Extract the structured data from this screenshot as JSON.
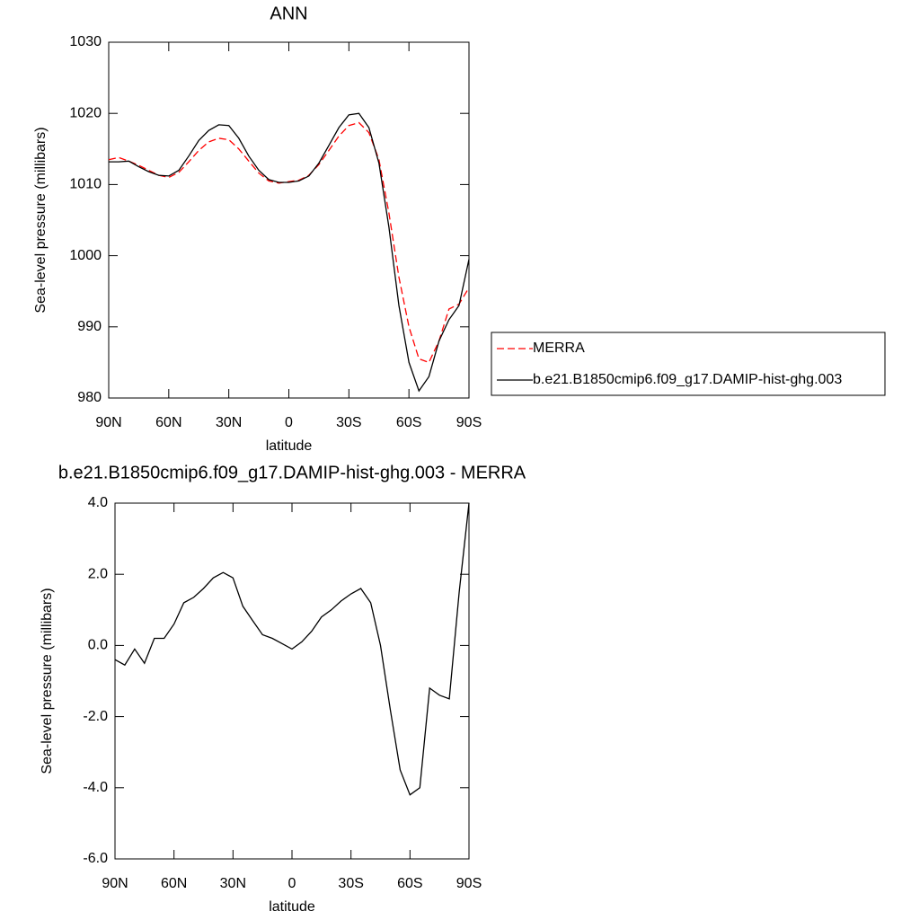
{
  "chart_data": [
    {
      "type": "line",
      "title": "ANN",
      "xlabel": "latitude",
      "ylabel": "Sea-level pressure (millibars)",
      "x": [
        90,
        85,
        80,
        75,
        70,
        65,
        60,
        55,
        50,
        45,
        40,
        35,
        30,
        25,
        20,
        15,
        10,
        5,
        0,
        -5,
        -10,
        -15,
        -20,
        -25,
        -30,
        -35,
        -40,
        -45,
        -50,
        -55,
        -60,
        -65,
        -70,
        -75,
        -80,
        -85,
        -90
      ],
      "xlim": [
        90,
        -90
      ],
      "xticks": [
        {
          "value": 90,
          "label": "90N"
        },
        {
          "value": 60,
          "label": "60N"
        },
        {
          "value": 30,
          "label": "30N"
        },
        0,
        {
          "value": -30,
          "label": "30S"
        },
        {
          "value": -60,
          "label": "60S"
        },
        {
          "value": -90,
          "label": "90S"
        }
      ],
      "ylim": [
        980,
        1030
      ],
      "yticks": [
        980,
        990,
        1000,
        1010,
        1020,
        1030
      ],
      "series": [
        {
          "name": "MERRA",
          "color": "#ff0000",
          "dash": true,
          "values": [
            1013.5,
            1013.8,
            1013.3,
            1012.7,
            1012,
            1011.3,
            1011,
            1011.7,
            1013.2,
            1014.8,
            1016,
            1016.5,
            1016.3,
            1015,
            1013.3,
            1011.6,
            1010.5,
            1010.2,
            1010.4,
            1010.6,
            1011.3,
            1012.8,
            1014.8,
            1016.8,
            1018.3,
            1018.7,
            1017.3,
            1013.5,
            1006,
            997,
            990,
            985.5,
            985,
            988,
            992.5,
            993.2,
            995.5
          ]
        },
        {
          "name": "b.e21.B1850cmip6.f09_g17.DAMIP-hist-ghg.003",
          "color": "#000000",
          "dash": false,
          "values": [
            1013.2,
            1013.2,
            1013.3,
            1012.5,
            1011.8,
            1011.3,
            1011.2,
            1012,
            1014,
            1016.2,
            1017.6,
            1018.4,
            1018.3,
            1016.5,
            1014,
            1012,
            1010.7,
            1010.3,
            1010.3,
            1010.5,
            1011.2,
            1013,
            1015.5,
            1018,
            1019.8,
            1020,
            1018,
            1013,
            1004,
            993,
            985,
            981,
            983,
            988,
            991,
            993,
            999.5
          ]
        }
      ]
    },
    {
      "type": "line",
      "title": "b.e21.B1850cmip6.f09_g17.DAMIP-hist-ghg.003 - MERRA",
      "xlabel": "latitude",
      "ylabel": "Sea-level pressure (millibars)",
      "x": [
        90,
        85,
        80,
        75,
        70,
        65,
        60,
        55,
        50,
        45,
        40,
        35,
        30,
        25,
        20,
        15,
        10,
        5,
        0,
        -5,
        -10,
        -15,
        -20,
        -25,
        -30,
        -35,
        -40,
        -45,
        -50,
        -55,
        -60,
        -65,
        -70,
        -75,
        -80,
        -85,
        -90
      ],
      "xlim": [
        90,
        -90
      ],
      "xticks": [
        {
          "value": 90,
          "label": "90N"
        },
        {
          "value": 60,
          "label": "60N"
        },
        {
          "value": 30,
          "label": "30N"
        },
        0,
        {
          "value": -30,
          "label": "30S"
        },
        {
          "value": -60,
          "label": "60S"
        },
        {
          "value": -90,
          "label": "90S"
        }
      ],
      "ylim": [
        -6,
        4
      ],
      "yticks": [
        {
          "value": -6,
          "label": "-6.0"
        },
        {
          "value": -4,
          "label": "-4.0"
        },
        {
          "value": -2,
          "label": "-2.0"
        },
        {
          "value": 0,
          "label": "0.0"
        },
        {
          "value": 2,
          "label": "2.0"
        },
        {
          "value": 4,
          "label": "4.0"
        }
      ],
      "series": [
        {
          "color": "#000000",
          "dash": false,
          "values": [
            -0.4,
            -0.55,
            -0.1,
            -0.5,
            0.2,
            0.2,
            0.6,
            1.2,
            1.35,
            1.6,
            1.9,
            2.05,
            1.9,
            1.1,
            0.7,
            0.3,
            0.2,
            0.05,
            -0.1,
            0.1,
            0.4,
            0.8,
            1.0,
            1.25,
            1.45,
            1.6,
            1.2,
            0,
            -1.8,
            -3.5,
            -4.2,
            -4.0,
            -1.2,
            -1.4,
            -1.5,
            1.5,
            4.0
          ]
        }
      ]
    }
  ]
}
